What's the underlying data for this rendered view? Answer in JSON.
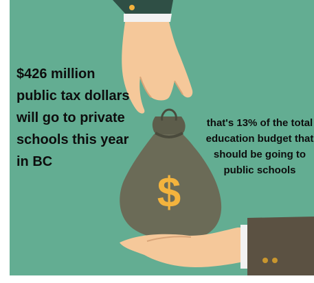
{
  "headline": "$426 million public tax dollars will go to private schools this year in BC",
  "subtext": "that's 13% of the total education budget that should be going to public schools",
  "icons": {
    "top_hand": "hand-dropping-icon",
    "bottom_hand": "open-palm-hand-icon",
    "money_bag": "money-bag-icon",
    "currency": "dollar-sign-icon"
  },
  "colors": {
    "background": "#63ad92",
    "skin": "#f5c89a",
    "bag": "#6b6b57",
    "dollar": "#f3b33d",
    "sleeve": "#5b5142"
  }
}
